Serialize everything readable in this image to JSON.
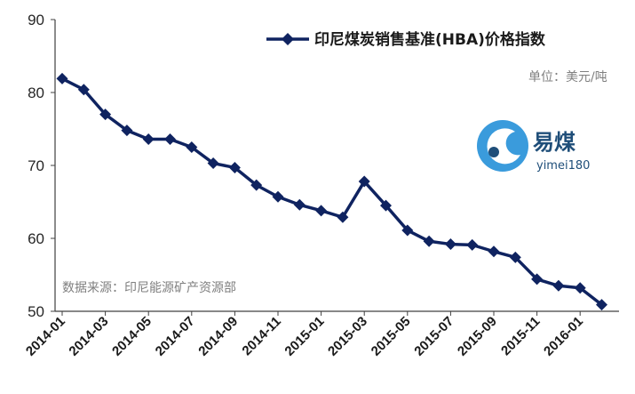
{
  "chart_data": {
    "type": "line",
    "title": "",
    "xlabel": "",
    "ylabel": "",
    "ylim": [
      50,
      90
    ],
    "yticks": [
      "50",
      "60",
      "70",
      "80",
      "90"
    ],
    "x_tick_labels": [
      "2014-01",
      "2014-03",
      "2014-05",
      "2014-07",
      "2014-09",
      "2014-11",
      "2015-01",
      "2015-03",
      "2015-05",
      "2015-07",
      "2015-09",
      "2015-11",
      "2016-01"
    ],
    "x": [
      "2014-01",
      "2014-02",
      "2014-03",
      "2014-04",
      "2014-05",
      "2014-06",
      "2014-07",
      "2014-08",
      "2014-09",
      "2014-10",
      "2014-11",
      "2014-12",
      "2015-01",
      "2015-02",
      "2015-03",
      "2015-04",
      "2015-05",
      "2015-06",
      "2015-07",
      "2015-08",
      "2015-09",
      "2015-10",
      "2015-11",
      "2015-12",
      "2016-01",
      "2016-02"
    ],
    "series": [
      {
        "name": "印尼煤炭销售基准(HBA)价格指数",
        "color": "#0f2360",
        "marker": "diamond",
        "values": [
          81.9,
          80.4,
          77.0,
          74.8,
          73.6,
          73.6,
          72.5,
          70.3,
          69.7,
          67.3,
          65.7,
          64.6,
          63.8,
          62.9,
          67.8,
          64.5,
          61.1,
          59.6,
          59.2,
          59.1,
          58.2,
          57.4,
          54.4,
          53.5,
          53.2,
          50.9
        ]
      }
    ],
    "grid": false,
    "legend_position": "top-right",
    "unit_note": "单位：美元/吨",
    "source_note": "数据来源：印尼能源矿产资源部"
  },
  "logo": {
    "name_cn": "易煤",
    "name_en": "yimei180",
    "colors": [
      "#1f4e79",
      "#3a9bdc"
    ]
  }
}
